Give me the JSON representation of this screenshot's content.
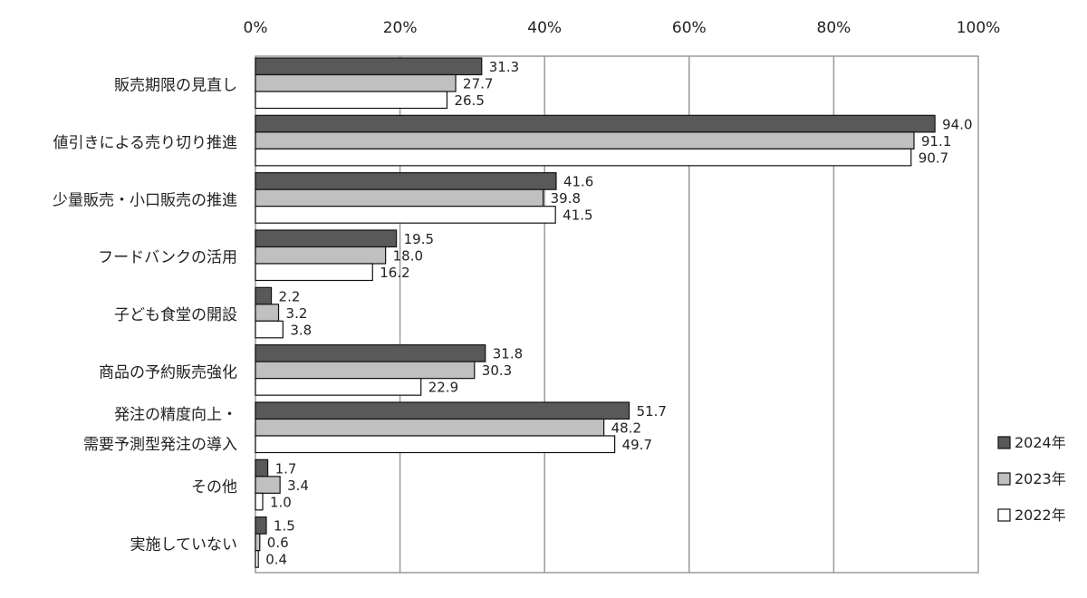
{
  "chart_data": {
    "type": "bar",
    "orientation": "horizontal",
    "categories": [
      [
        "販売期限の見直し"
      ],
      [
        "値引きによる売り切り推進"
      ],
      [
        "少量販売・小口販売の推進"
      ],
      [
        "フードバンクの活用"
      ],
      [
        "子ども食堂の開設"
      ],
      [
        "商品の予約販売強化"
      ],
      [
        "発注の精度向上・",
        "需要予測型発注の導入"
      ],
      [
        "その他"
      ],
      [
        "実施していない"
      ]
    ],
    "series": [
      {
        "name": "2024年",
        "color": "#595959",
        "values": [
          31.3,
          94.0,
          41.6,
          19.5,
          2.2,
          31.8,
          51.7,
          1.7,
          1.5
        ]
      },
      {
        "name": "2023年",
        "color": "#c0c0c0",
        "values": [
          27.7,
          91.1,
          39.8,
          18.0,
          3.2,
          30.3,
          48.2,
          3.4,
          0.6
        ]
      },
      {
        "name": "2022年",
        "color": "#ffffff",
        "values": [
          26.5,
          90.7,
          41.5,
          16.2,
          3.8,
          22.9,
          49.7,
          1.0,
          0.4
        ]
      }
    ],
    "value_labels": [
      [
        "31.3",
        "94.0",
        "41.6",
        "19.5",
        "2.2",
        "31.8",
        "51.7",
        "1.7",
        "1.5"
      ],
      [
        "27.7",
        "91.1",
        "39.8",
        "18.0",
        "3.2",
        "30.3",
        "48.2",
        "3.4",
        "0.6"
      ],
      [
        "26.5",
        "90.7",
        "41.5",
        "16.2",
        "3.8",
        "22.9",
        "49.7",
        "1.0",
        "0.4"
      ]
    ],
    "x_ticks": [
      "0%",
      "20%",
      "40%",
      "60%",
      "80%",
      "100%"
    ],
    "xlim": [
      0,
      100
    ],
    "x_axis_position": "top",
    "grid": true,
    "legend": "right"
  }
}
